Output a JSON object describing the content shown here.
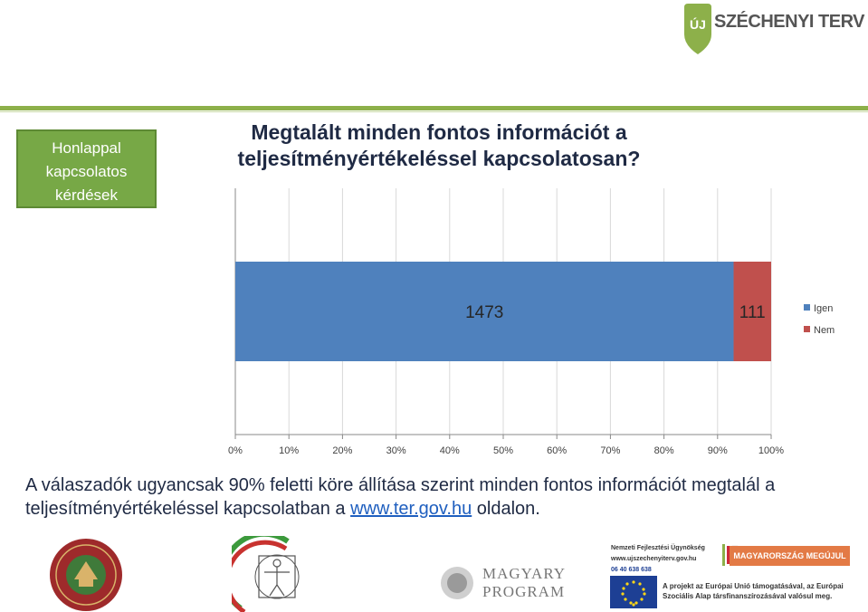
{
  "brand": {
    "name": "SZÉCHENYI TERV",
    "badge": "ÚJ",
    "colors": {
      "green": "#8db04a",
      "gray": "#555555"
    }
  },
  "sidebox": {
    "text": "Honlappal\nkapcsolatos\nkérdések"
  },
  "title": "Megtalált minden fontos információt a teljesítményértékeléssel kapcsolatosan?",
  "chart_data": {
    "type": "bar",
    "orientation": "horizontal",
    "stacked": "percent",
    "categories": [
      ""
    ],
    "series": [
      {
        "name": "Igen",
        "values": [
          1473
        ],
        "color": "#4f81bd",
        "label": "1473"
      },
      {
        "name": "Nem",
        "values": [
          111
        ],
        "color": "#c0504d",
        "label": "111"
      }
    ],
    "xticks": [
      "0%",
      "10%",
      "20%",
      "30%",
      "40%",
      "50%",
      "60%",
      "70%",
      "80%",
      "90%",
      "100%"
    ],
    "xlim": [
      0,
      100
    ],
    "grid": true,
    "legend": "right"
  },
  "caption": {
    "before": "A válaszadók ugyancsak 90% feletti köre állítása szerint minden fontos információt megtalál a teljesítményértékeléssel kapcsolatban a ",
    "link": "www.ter.gov.hu",
    "after": " oldalon."
  },
  "footer": {
    "magyary": [
      "MAGYARY",
      "PROGRAM"
    ],
    "nfu": [
      "Nemzeti Fejlesztési Ügynökség",
      "www.ujszechenyiterv.gov.hu",
      "06 40 638 638"
    ],
    "megujul": "MAGYARORSZÁG MEGÚJUL",
    "eu": "A projekt az Európai Unió támogatásával, az Európai Szociális Alap társfinanszírozásával valósul meg."
  }
}
